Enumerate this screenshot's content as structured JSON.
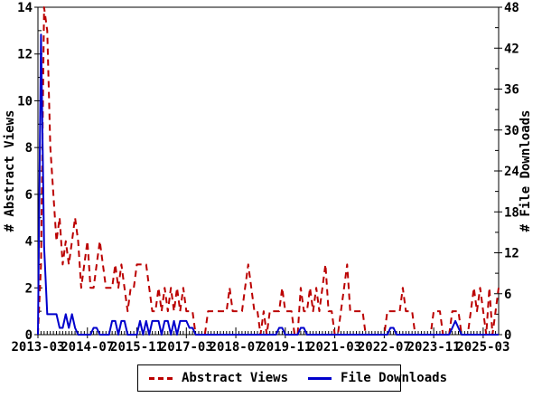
{
  "axes": {
    "left_title": "# Abstract Views",
    "right_title": "# File Downloads"
  },
  "legend": {
    "abstract_views_label": "Abstract Views",
    "file_downloads_label": "File Downloads"
  },
  "colors": {
    "abstract_views": "#bb0000",
    "file_downloads": "#0000cc",
    "axis": "#000000",
    "background": "#ffffff"
  },
  "chart_data": {
    "type": "line",
    "x_start": "2013-03",
    "x_cadence": "monthly",
    "x_months_total": 150,
    "x_tick_labels": [
      "2013-03",
      "2014-07",
      "2015-11",
      "2017-03",
      "2018-07",
      "2019-11",
      "2021-03",
      "2022-07",
      "2023-11",
      "2025-03"
    ],
    "x_tick_month_indices": [
      0,
      16,
      32,
      48,
      64,
      80,
      96,
      112,
      128,
      144
    ],
    "y_left": {
      "label": "# Abstract Views",
      "min": 0,
      "max": 14,
      "tick_step": 2,
      "minor_step": 1,
      "ticks": [
        0,
        2,
        4,
        6,
        8,
        10,
        12,
        14
      ]
    },
    "y_right": {
      "label": "# File Downloads",
      "min": 0,
      "max": 48,
      "tick_step": 6,
      "minor_step": 3,
      "ticks": [
        0,
        6,
        12,
        18,
        24,
        30,
        36,
        42,
        48
      ]
    },
    "grid": false,
    "legend_position": "bottom-center",
    "series": [
      {
        "name": "Abstract Views",
        "axis": "left",
        "style": "dashed",
        "color": "#bb0000",
        "values": [
          0,
          3,
          14,
          13,
          8,
          6,
          4,
          5,
          3,
          4,
          3,
          4,
          5,
          4,
          2,
          3,
          4,
          2,
          2,
          3,
          4,
          3,
          2,
          2,
          2,
          3,
          2,
          3,
          2,
          1,
          2,
          2,
          3,
          3,
          3,
          3,
          2,
          1,
          1,
          2,
          1,
          2,
          1,
          2,
          1,
          2,
          1,
          2,
          1,
          1,
          1,
          0,
          0,
          0,
          0,
          1,
          1,
          1,
          1,
          1,
          1,
          1,
          2,
          1,
          1,
          1,
          1,
          2,
          3,
          2,
          1,
          1,
          0,
          1,
          0,
          1,
          1,
          1,
          1,
          2,
          1,
          1,
          1,
          0,
          0,
          2,
          1,
          1,
          2,
          1,
          2,
          1,
          2,
          3,
          1,
          1,
          0,
          0,
          1,
          2,
          3,
          1,
          1,
          1,
          1,
          1,
          0,
          0,
          0,
          0,
          0,
          0,
          0,
          1,
          1,
          1,
          1,
          1,
          2,
          1,
          1,
          1,
          0,
          0,
          0,
          0,
          0,
          0,
          1,
          1,
          1,
          0,
          0,
          0,
          1,
          1,
          1,
          0,
          0,
          0,
          1,
          2,
          1,
          2,
          1,
          0,
          2,
          0,
          1,
          2
        ]
      },
      {
        "name": "File Downloads",
        "axis": "right",
        "style": "solid",
        "color": "#0000cc",
        "values": [
          0,
          44,
          13,
          3,
          3,
          3,
          3,
          1,
          1,
          3,
          1,
          3,
          1,
          0,
          0,
          0,
          0,
          0,
          1,
          1,
          0,
          0,
          0,
          0,
          2,
          2,
          0,
          2,
          2,
          0,
          0,
          0,
          0,
          2,
          0,
          2,
          0,
          2,
          2,
          2,
          0,
          2,
          2,
          0,
          2,
          0,
          2,
          2,
          2,
          1,
          1,
          0,
          0,
          0,
          0,
          0,
          0,
          0,
          0,
          0,
          0,
          0,
          0,
          0,
          0,
          0,
          0,
          0,
          0,
          0,
          0,
          0,
          0,
          0,
          0,
          0,
          0,
          0,
          1,
          1,
          0,
          0,
          0,
          0,
          0,
          1,
          1,
          0,
          0,
          0,
          0,
          0,
          0,
          0,
          0,
          0,
          0,
          0,
          0,
          0,
          0,
          0,
          0,
          0,
          0,
          0,
          0,
          0,
          0,
          0,
          0,
          0,
          0,
          0,
          1,
          1,
          0,
          0,
          0,
          0,
          0,
          0,
          0,
          0,
          0,
          0,
          0,
          0,
          0,
          0,
          0,
          0,
          0,
          0,
          1,
          2,
          1,
          0,
          0,
          0,
          0,
          0,
          0,
          0,
          0,
          0,
          0,
          0,
          0,
          0
        ]
      }
    ]
  }
}
